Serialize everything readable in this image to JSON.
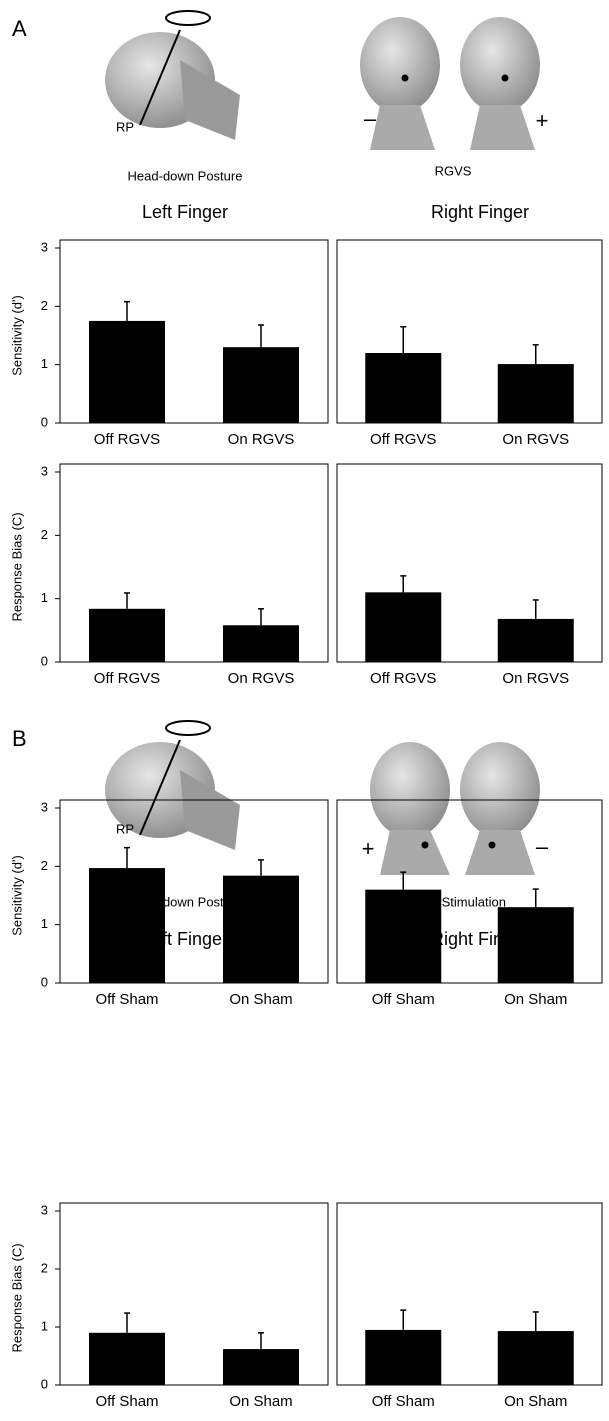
{
  "panels": [
    {
      "label": "A",
      "rp": "RP",
      "posture": "Head-down Posture",
      "stimulation": "RGVS",
      "left_sign": "–",
      "right_sign": "+",
      "column_titles": [
        "Left Finger",
        "Right Finger"
      ]
    },
    {
      "label": "B",
      "rp": "RP",
      "posture": "Head-down Posture",
      "stimulation": "Sham Stimulation",
      "left_sign": "+",
      "right_sign": "–",
      "column_titles": [
        "Left Finger",
        "Right Finger"
      ]
    }
  ],
  "chart_data": [
    {
      "type": "bar",
      "ylabel": "Sensitivity (d')",
      "categories": [
        "Off RGVS",
        "On RGVS"
      ],
      "values": [
        1.75,
        1.3
      ],
      "errors": [
        0.33,
        0.38
      ],
      "color": "#000000",
      "ylim": [
        0,
        3
      ],
      "yticks": [
        0,
        1,
        2,
        3
      ]
    },
    {
      "type": "bar",
      "categories": [
        "Off RGVS",
        "On RGVS"
      ],
      "values": [
        1.2,
        1.01
      ],
      "errors": [
        0.45,
        0.33
      ],
      "color": "#000000",
      "ylim": [
        0,
        3
      ]
    },
    {
      "type": "bar",
      "ylabel": "Response Bias (C)",
      "categories": [
        "Off RGVS",
        "On RGVS"
      ],
      "values": [
        0.84,
        0.58
      ],
      "errors": [
        0.25,
        0.26
      ],
      "color": "#000000",
      "ylim": [
        0,
        3
      ],
      "yticks": [
        0,
        1,
        2,
        3
      ]
    },
    {
      "type": "bar",
      "categories": [
        "Off RGVS",
        "On RGVS"
      ],
      "values": [
        1.1,
        0.68
      ],
      "errors": [
        0.26,
        0.3
      ],
      "color": "#000000",
      "ylim": [
        0,
        3
      ]
    },
    {
      "type": "bar",
      "ylabel": "Sensitivity (d')",
      "categories": [
        "Off Sham",
        "On Sham"
      ],
      "values": [
        1.97,
        1.84
      ],
      "errors": [
        0.35,
        0.27
      ],
      "color": "#000000",
      "ylim": [
        0,
        3
      ],
      "yticks": [
        0,
        1,
        2,
        3
      ]
    },
    {
      "type": "bar",
      "categories": [
        "Off Sham",
        "On Sham"
      ],
      "values": [
        1.6,
        1.3
      ],
      "errors": [
        0.3,
        0.31
      ],
      "color": "#000000",
      "ylim": [
        0,
        3
      ]
    },
    {
      "type": "bar",
      "ylabel": "Response Bias (C)",
      "categories": [
        "Off Sham",
        "On Sham"
      ],
      "values": [
        0.9,
        0.62
      ],
      "errors": [
        0.34,
        0.28
      ],
      "color": "#000000",
      "ylim": [
        0,
        3
      ],
      "yticks": [
        0,
        1,
        2,
        3
      ]
    },
    {
      "type": "bar",
      "categories": [
        "Off Sham",
        "On Sham"
      ],
      "values": [
        0.95,
        0.93
      ],
      "errors": [
        0.34,
        0.33
      ],
      "color": "#000000",
      "ylim": [
        0,
        3
      ]
    }
  ]
}
